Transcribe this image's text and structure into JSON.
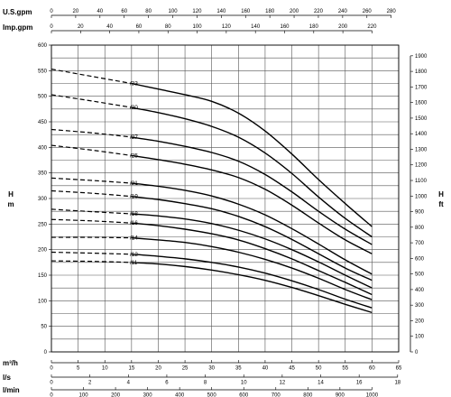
{
  "chart_data": {
    "type": "line",
    "title": "",
    "x_axes": [
      {
        "label": "U.S.gpm",
        "min": 0,
        "max": 280,
        "step": 20,
        "ticks": [
          0,
          20,
          40,
          60,
          80,
          100,
          120,
          140,
          160,
          180,
          200,
          220,
          240,
          260,
          280
        ]
      },
      {
        "label": "Imp.gpm",
        "min": 0,
        "max": 220,
        "step": 20,
        "ticks": [
          0,
          20,
          40,
          60,
          80,
          100,
          120,
          140,
          160,
          180,
          200,
          220
        ]
      },
      {
        "label": "m³/h",
        "min": 0,
        "max": 65,
        "step": 5,
        "ticks": [
          0,
          5,
          10,
          15,
          20,
          25,
          30,
          35,
          40,
          45,
          50,
          55,
          60,
          65
        ]
      },
      {
        "label": "l/s",
        "min": 0,
        "max": 18,
        "step": 2,
        "ticks": [
          0,
          2,
          4,
          6,
          8,
          10,
          12,
          14,
          16,
          18
        ]
      },
      {
        "label": "l/min",
        "min": 0,
        "max": 1000,
        "step": 100,
        "ticks": [
          0,
          100,
          200,
          300,
          400,
          500,
          600,
          700,
          800,
          900,
          1000
        ]
      }
    ],
    "y_axes": [
      {
        "label": "H",
        "unit": "m",
        "min": 0,
        "max": 600,
        "step": 25,
        "ticks": [
          0,
          50,
          100,
          150,
          200,
          250,
          300,
          350,
          400,
          450,
          500,
          550,
          600
        ]
      },
      {
        "label": "H",
        "unit": "ft",
        "min": 0,
        "max": 1900,
        "step": 100,
        "ticks": [
          0,
          100,
          200,
          300,
          400,
          500,
          600,
          700,
          800,
          900,
          1000,
          1100,
          1200,
          1300,
          1400,
          1500,
          1600,
          1700,
          1800,
          1900
        ]
      }
    ],
    "grid": true,
    "flow_unit": "m³/h",
    "head_unit": "m",
    "series": [
      {
        "name": "/33",
        "dashed": [
          [
            0,
            553
          ],
          [
            8,
            538
          ],
          [
            15,
            525
          ]
        ],
        "solid": [
          [
            15,
            525
          ],
          [
            20,
            514
          ],
          [
            25,
            503
          ],
          [
            30,
            490
          ],
          [
            35,
            467
          ],
          [
            40,
            432
          ],
          [
            45,
            387
          ],
          [
            50,
            337
          ],
          [
            55,
            290
          ],
          [
            60,
            245
          ]
        ]
      },
      {
        "name": "/30",
        "dashed": [
          [
            0,
            503
          ],
          [
            8,
            490
          ],
          [
            15,
            478
          ]
        ],
        "solid": [
          [
            15,
            478
          ],
          [
            20,
            468
          ],
          [
            25,
            456
          ],
          [
            30,
            441
          ],
          [
            35,
            420
          ],
          [
            40,
            389
          ],
          [
            45,
            349
          ],
          [
            50,
            303
          ],
          [
            55,
            261
          ],
          [
            60,
            225
          ]
        ]
      },
      {
        "name": "/27",
        "dashed": [
          [
            0,
            435
          ],
          [
            8,
            428
          ],
          [
            15,
            420
          ]
        ],
        "solid": [
          [
            15,
            420
          ],
          [
            20,
            412
          ],
          [
            25,
            402
          ],
          [
            30,
            390
          ],
          [
            35,
            373
          ],
          [
            40,
            347
          ],
          [
            45,
            313
          ],
          [
            50,
            275
          ],
          [
            55,
            240
          ],
          [
            60,
            210
          ]
        ]
      },
      {
        "name": "/25",
        "dashed": [
          [
            0,
            404
          ],
          [
            8,
            394
          ],
          [
            15,
            384
          ]
        ],
        "solid": [
          [
            15,
            384
          ],
          [
            20,
            376
          ],
          [
            25,
            367
          ],
          [
            30,
            356
          ],
          [
            35,
            341
          ],
          [
            40,
            318
          ],
          [
            45,
            287
          ],
          [
            50,
            252
          ],
          [
            55,
            219
          ],
          [
            60,
            192
          ]
        ]
      },
      {
        "name": "/21",
        "dashed": [
          [
            0,
            340
          ],
          [
            8,
            335
          ],
          [
            15,
            330
          ]
        ],
        "solid": [
          [
            15,
            330
          ],
          [
            20,
            324
          ],
          [
            25,
            316
          ],
          [
            30,
            305
          ],
          [
            35,
            289
          ],
          [
            40,
            268
          ],
          [
            45,
            241
          ],
          [
            50,
            211
          ],
          [
            55,
            180
          ],
          [
            60,
            152
          ]
        ]
      },
      {
        "name": "/19",
        "dashed": [
          [
            0,
            315
          ],
          [
            8,
            310
          ],
          [
            15,
            304
          ]
        ],
        "solid": [
          [
            15,
            304
          ],
          [
            20,
            298
          ],
          [
            25,
            290
          ],
          [
            30,
            280
          ],
          [
            35,
            265
          ],
          [
            40,
            245
          ],
          [
            45,
            220
          ],
          [
            50,
            192
          ],
          [
            55,
            164
          ],
          [
            60,
            140
          ]
        ]
      },
      {
        "name": "/18",
        "dashed": [
          [
            0,
            279
          ],
          [
            8,
            274
          ],
          [
            15,
            270
          ]
        ],
        "solid": [
          [
            15,
            270
          ],
          [
            20,
            266
          ],
          [
            25,
            260
          ],
          [
            30,
            251
          ],
          [
            35,
            238
          ],
          [
            40,
            221
          ],
          [
            45,
            200
          ],
          [
            50,
            176
          ],
          [
            55,
            150
          ],
          [
            60,
            125
          ]
        ]
      },
      {
        "name": "/16",
        "dashed": [
          [
            0,
            259
          ],
          [
            8,
            256
          ],
          [
            15,
            252
          ]
        ],
        "solid": [
          [
            15,
            252
          ],
          [
            20,
            247
          ],
          [
            25,
            240
          ],
          [
            30,
            231
          ],
          [
            35,
            219
          ],
          [
            40,
            202
          ],
          [
            45,
            182
          ],
          [
            50,
            159
          ],
          [
            55,
            136
          ],
          [
            60,
            112
          ]
        ]
      },
      {
        "name": "/14",
        "dashed": [
          [
            0,
            224
          ],
          [
            8,
            224
          ],
          [
            15,
            223
          ]
        ],
        "solid": [
          [
            15,
            223
          ],
          [
            20,
            219
          ],
          [
            25,
            214
          ],
          [
            30,
            206
          ],
          [
            35,
            195
          ],
          [
            40,
            181
          ],
          [
            45,
            164
          ],
          [
            50,
            144
          ],
          [
            55,
            122
          ],
          [
            60,
            102
          ]
        ]
      },
      {
        "name": "/12",
        "dashed": [
          [
            0,
            195
          ],
          [
            8,
            193
          ],
          [
            15,
            191
          ]
        ],
        "solid": [
          [
            15,
            191
          ],
          [
            20,
            187
          ],
          [
            25,
            182
          ],
          [
            30,
            175
          ],
          [
            35,
            166
          ],
          [
            40,
            154
          ],
          [
            45,
            139
          ],
          [
            50,
            122
          ],
          [
            55,
            103
          ],
          [
            60,
            86
          ]
        ]
      },
      {
        "name": "/11",
        "dashed": [
          [
            0,
            178
          ],
          [
            8,
            177
          ],
          [
            15,
            175
          ]
        ],
        "solid": [
          [
            15,
            175
          ],
          [
            20,
            172
          ],
          [
            25,
            167
          ],
          [
            30,
            160
          ],
          [
            35,
            151
          ],
          [
            40,
            140
          ],
          [
            45,
            126
          ],
          [
            50,
            110
          ],
          [
            55,
            93
          ],
          [
            60,
            77
          ]
        ]
      }
    ]
  }
}
